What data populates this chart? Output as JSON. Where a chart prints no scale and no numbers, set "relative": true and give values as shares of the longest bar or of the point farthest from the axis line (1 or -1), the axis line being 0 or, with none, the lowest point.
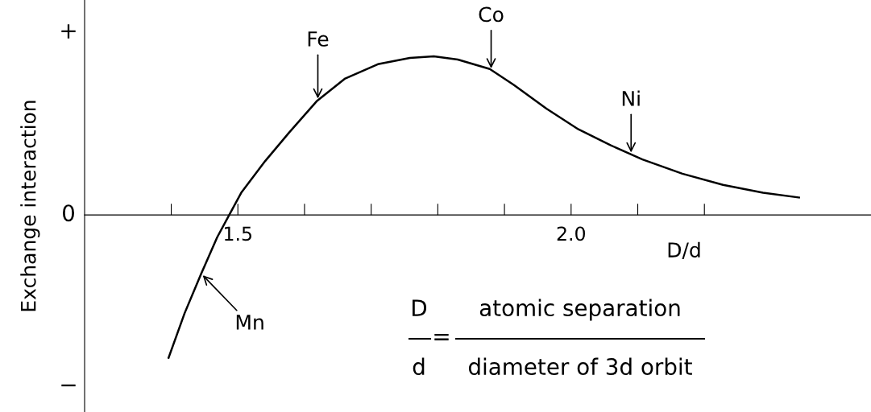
{
  "chart_data": {
    "type": "line",
    "relative": true,
    "ylabel": "Exchange interaction",
    "xlabel": "D/d",
    "x": [
      1.396,
      1.42,
      1.445,
      1.469,
      1.487,
      1.505,
      1.541,
      1.577,
      1.619,
      1.661,
      1.71,
      1.758,
      1.794,
      1.83,
      1.878,
      1.914,
      1.963,
      2.011,
      2.059,
      2.107,
      2.167,
      2.228,
      2.288,
      2.342
    ],
    "series": [
      {
        "color": "#000000",
        "values": [
          -0.9,
          -0.62,
          -0.37,
          -0.14,
          0,
          0.14,
          0.34,
          0.52,
          0.72,
          0.86,
          0.95,
          0.99,
          1.0,
          0.98,
          0.92,
          0.82,
          0.67,
          0.54,
          0.44,
          0.35,
          0.26,
          0.19,
          0.14,
          0.11
        ]
      }
    ],
    "xlim": [
      1.27,
      2.45
    ],
    "xticks": [
      {
        "value": 1.4,
        "label": null
      },
      {
        "value": 1.5,
        "label": "1.5"
      },
      {
        "value": 1.6,
        "label": null
      },
      {
        "value": 1.7,
        "label": null
      },
      {
        "value": 1.8,
        "label": null
      },
      {
        "value": 1.9,
        "label": null
      },
      {
        "value": 2.0,
        "label": "2.0"
      },
      {
        "value": 2.1,
        "label": null
      },
      {
        "value": 2.2,
        "label": null
      }
    ],
    "annotations": [
      {
        "text": "Fe",
        "x": 1.62,
        "y": 0.72
      },
      {
        "text": "Co",
        "x": 1.88,
        "y": 0.91
      },
      {
        "text": "Ni",
        "x": 2.09,
        "y": 0.38
      },
      {
        "text": "Mn",
        "x": 1.445,
        "y": -0.37
      },
      "+",
      "0",
      "−",
      "D",
      "d",
      "=",
      "atomic separation",
      "diameter of 3d orbit"
    ],
    "grid": false,
    "legend": false,
    "marker": "none",
    "line_style": "solid"
  }
}
